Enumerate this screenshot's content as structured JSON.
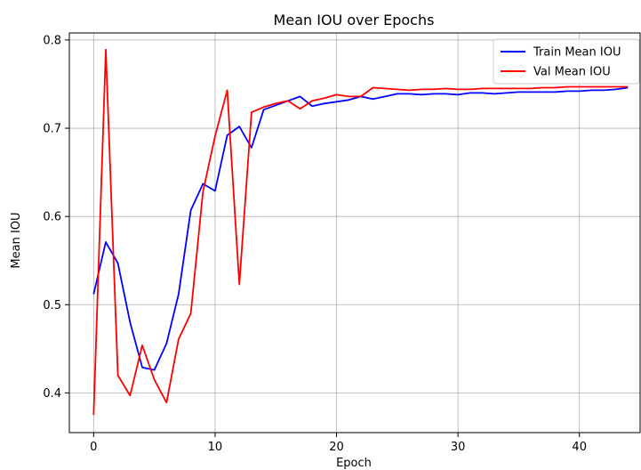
{
  "chart_data": {
    "type": "line",
    "title": "Mean IOU over Epochs",
    "xlabel": "Epoch",
    "ylabel": "Mean IOU",
    "xlim": [
      -2,
      45
    ],
    "ylim": [
      0.355,
      0.808
    ],
    "xticks": [
      0,
      10,
      20,
      30,
      40
    ],
    "xtick_labels": [
      "0",
      "10",
      "20",
      "30",
      "40"
    ],
    "yticks": [
      0.4,
      0.5,
      0.6,
      0.7,
      0.8
    ],
    "ytick_labels": [
      "0.4",
      "0.5",
      "0.6",
      "0.7",
      "0.8"
    ],
    "grid": true,
    "legend_position": "top-right",
    "x": [
      0,
      1,
      2,
      3,
      4,
      5,
      6,
      7,
      8,
      9,
      10,
      11,
      12,
      13,
      14,
      15,
      16,
      17,
      18,
      19,
      20,
      21,
      22,
      23,
      24,
      25,
      26,
      27,
      28,
      29,
      30,
      31,
      32,
      33,
      34,
      35,
      36,
      37,
      38,
      39,
      40,
      41,
      42,
      43,
      44
    ],
    "series": [
      {
        "name": "Train Mean IOU",
        "color": "#0000ff",
        "values": [
          0.512,
          0.571,
          0.547,
          0.48,
          0.429,
          0.426,
          0.456,
          0.512,
          0.607,
          0.637,
          0.629,
          0.692,
          0.702,
          0.678,
          0.721,
          0.726,
          0.731,
          0.736,
          0.725,
          0.728,
          0.73,
          0.732,
          0.736,
          0.733,
          0.736,
          0.739,
          0.739,
          0.738,
          0.739,
          0.739,
          0.738,
          0.74,
          0.74,
          0.739,
          0.74,
          0.741,
          0.741,
          0.741,
          0.741,
          0.742,
          0.742,
          0.743,
          0.743,
          0.744,
          0.746
        ]
      },
      {
        "name": "Val Mean IOU",
        "color": "#ff0000",
        "values": [
          0.375,
          0.789,
          0.42,
          0.397,
          0.454,
          0.415,
          0.389,
          0.461,
          0.49,
          0.628,
          0.691,
          0.743,
          0.523,
          0.718,
          0.724,
          0.728,
          0.731,
          0.722,
          0.731,
          0.734,
          0.738,
          0.736,
          0.736,
          0.746,
          0.745,
          0.744,
          0.743,
          0.744,
          0.744,
          0.745,
          0.744,
          0.744,
          0.745,
          0.745,
          0.745,
          0.745,
          0.745,
          0.746,
          0.746,
          0.747,
          0.747,
          0.747,
          0.747,
          0.747,
          0.747
        ]
      }
    ]
  }
}
